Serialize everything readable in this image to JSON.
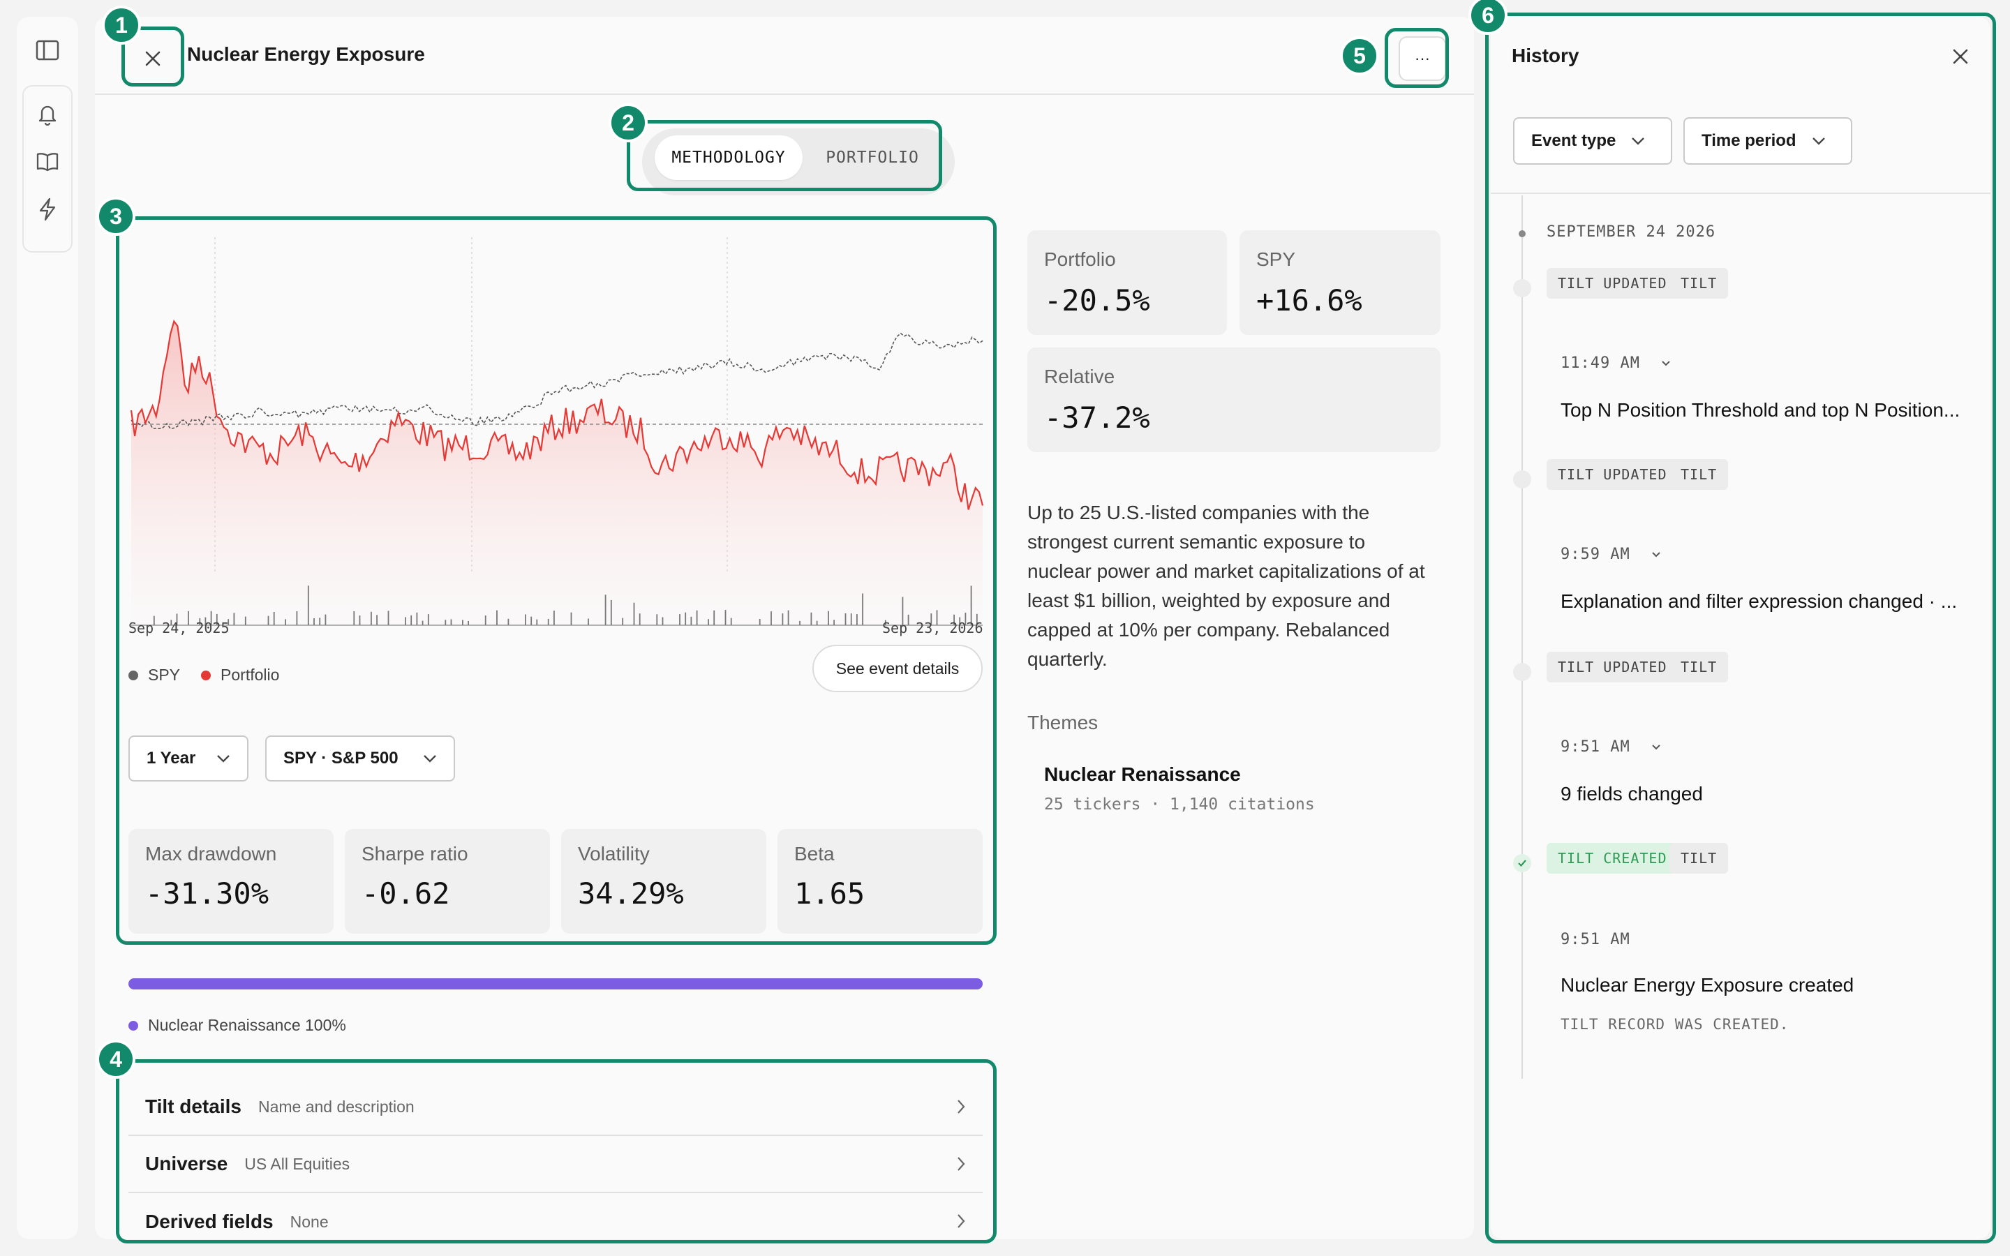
{
  "window": {
    "title": "Nuclear Energy Exposure"
  },
  "tabs": [
    {
      "label": "METHODOLOGY",
      "active": true
    },
    {
      "label": "PORTFOLIO",
      "active": false
    }
  ],
  "chart": {
    "date_start": "Sep 24, 2025",
    "date_end": "Sep 23, 2026",
    "legend": [
      {
        "name": "SPY",
        "color": "#666666"
      },
      {
        "name": "Portfolio",
        "color": "#e53935"
      }
    ],
    "see_events_label": "See event details"
  },
  "controls": {
    "period": "1 Year",
    "benchmark": "SPY · S&P 500"
  },
  "stats": [
    {
      "label": "Max drawdown",
      "value": "-31.30%"
    },
    {
      "label": "Sharpe ratio",
      "value": "-0.62"
    },
    {
      "label": "Volatility",
      "value": "34.29%"
    },
    {
      "label": "Beta",
      "value": "1.65"
    }
  ],
  "allocation": {
    "label": "Nuclear Renaissance 100%",
    "color": "#7c5ce0",
    "percent": 100
  },
  "detail_rows": [
    {
      "title": "Tilt details",
      "subtitle": "Name and description"
    },
    {
      "title": "Universe",
      "subtitle": "US All Equities"
    },
    {
      "title": "Derived fields",
      "subtitle": "None"
    }
  ],
  "kpis": {
    "portfolio": {
      "label": "Portfolio",
      "value": "-20.5%"
    },
    "spy": {
      "label": "SPY",
      "value": "+16.6%"
    },
    "relative": {
      "label": "Relative",
      "value": "-37.2%"
    }
  },
  "description": "Up to 25 U.S.-listed companies with the strongest current semantic exposure to nuclear power and market capitalizations of at least $1 billion, weighted by exposure and capped at 10% per company. Rebalanced quarterly.",
  "themes": {
    "heading": "Themes",
    "items": [
      {
        "name": "Nuclear Renaissance",
        "meta": "25 tickers · 1,140 citations"
      }
    ]
  },
  "history": {
    "title": "History",
    "filters": [
      "Event type",
      "Time period"
    ],
    "date": "SEPTEMBER 24 2026",
    "events": [
      {
        "tag": "TILT UPDATED",
        "type": "TILT",
        "time": "11:49 AM",
        "message": "Top N Position Threshold and top N Position..."
      },
      {
        "tag": "TILT UPDATED",
        "type": "TILT",
        "time": "9:59 AM",
        "message": "Explanation and filter expression changed · ..."
      },
      {
        "tag": "TILT UPDATED",
        "type": "TILT",
        "time": "9:51 AM",
        "message": "9 fields changed"
      },
      {
        "tag": "TILT CREATED",
        "type": "TILT",
        "time": "9:51 AM",
        "message": "Nuclear Energy Exposure created",
        "note": "TILT RECORD WAS CREATED."
      }
    ]
  },
  "annotations": [
    "1",
    "2",
    "3",
    "4",
    "5",
    "6"
  ],
  "colors": {
    "accent": "#12896b",
    "portfolio_line": "#e53935",
    "spy_line": "#666666"
  }
}
